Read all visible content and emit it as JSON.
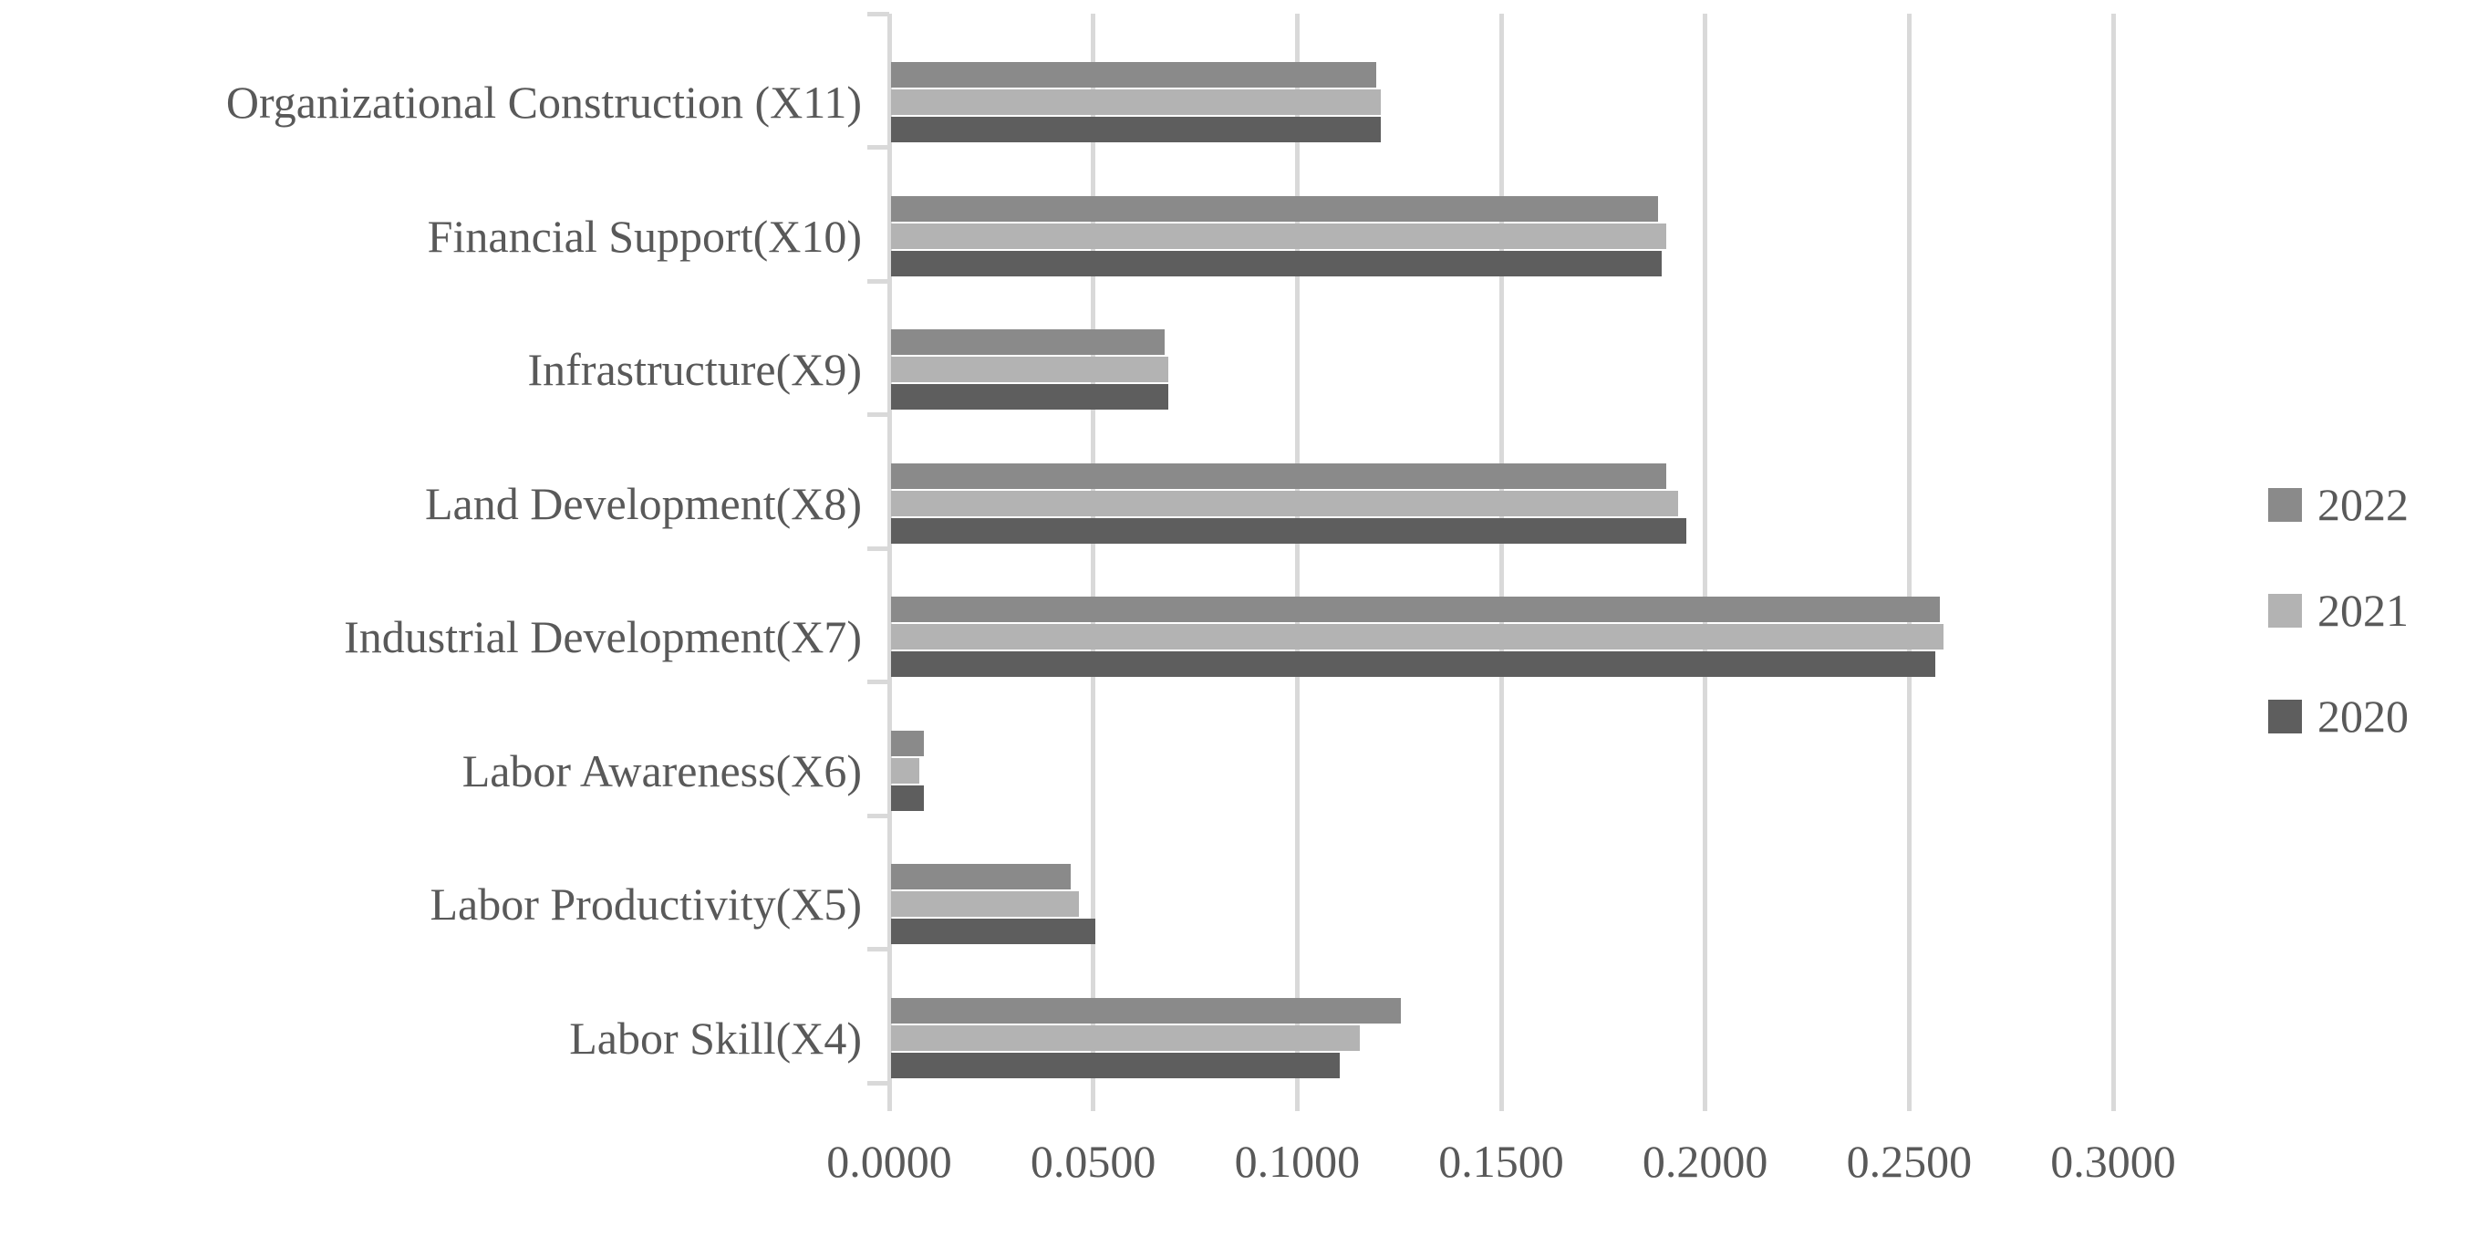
{
  "figure": {
    "background_color": "#ffffff",
    "text_color": "#595959",
    "gridline_color": "#d9d9d9"
  },
  "chart_data": {
    "type": "bar",
    "orientation": "horizontal",
    "title": "",
    "xlabel": "",
    "ylabel": "",
    "grid": true,
    "categories": [
      "Organizational Construction (X11)",
      "Financial Support(X10)",
      "Infrastructure(X9)",
      "Land Development(X8)",
      "Industrial Development(X7)",
      "Labor Awareness(X6)",
      "Labor Productivity(X5)",
      "Labor Skill(X4)"
    ],
    "series": [
      {
        "name": "2022",
        "color": "#8a8a8a",
        "values": [
          0.119,
          0.188,
          0.067,
          0.19,
          0.257,
          0.008,
          0.044,
          0.125
        ]
      },
      {
        "name": "2021",
        "color": "#b3b3b3",
        "values": [
          0.12,
          0.19,
          0.068,
          0.193,
          0.258,
          0.007,
          0.046,
          0.115
        ]
      },
      {
        "name": "2020",
        "color": "#5e5e5e",
        "values": [
          0.12,
          0.189,
          0.068,
          0.195,
          0.256,
          0.008,
          0.05,
          0.11
        ]
      }
    ],
    "x_axis": {
      "min": 0.0,
      "max": 0.3,
      "step": 0.05,
      "tick_labels": [
        "0.0000",
        "0.0500",
        "0.1000",
        "0.1500",
        "0.2000",
        "0.2500",
        "0.3000"
      ]
    },
    "legend": {
      "position": "right",
      "entries": [
        "2022",
        "2021",
        "2020"
      ]
    }
  }
}
